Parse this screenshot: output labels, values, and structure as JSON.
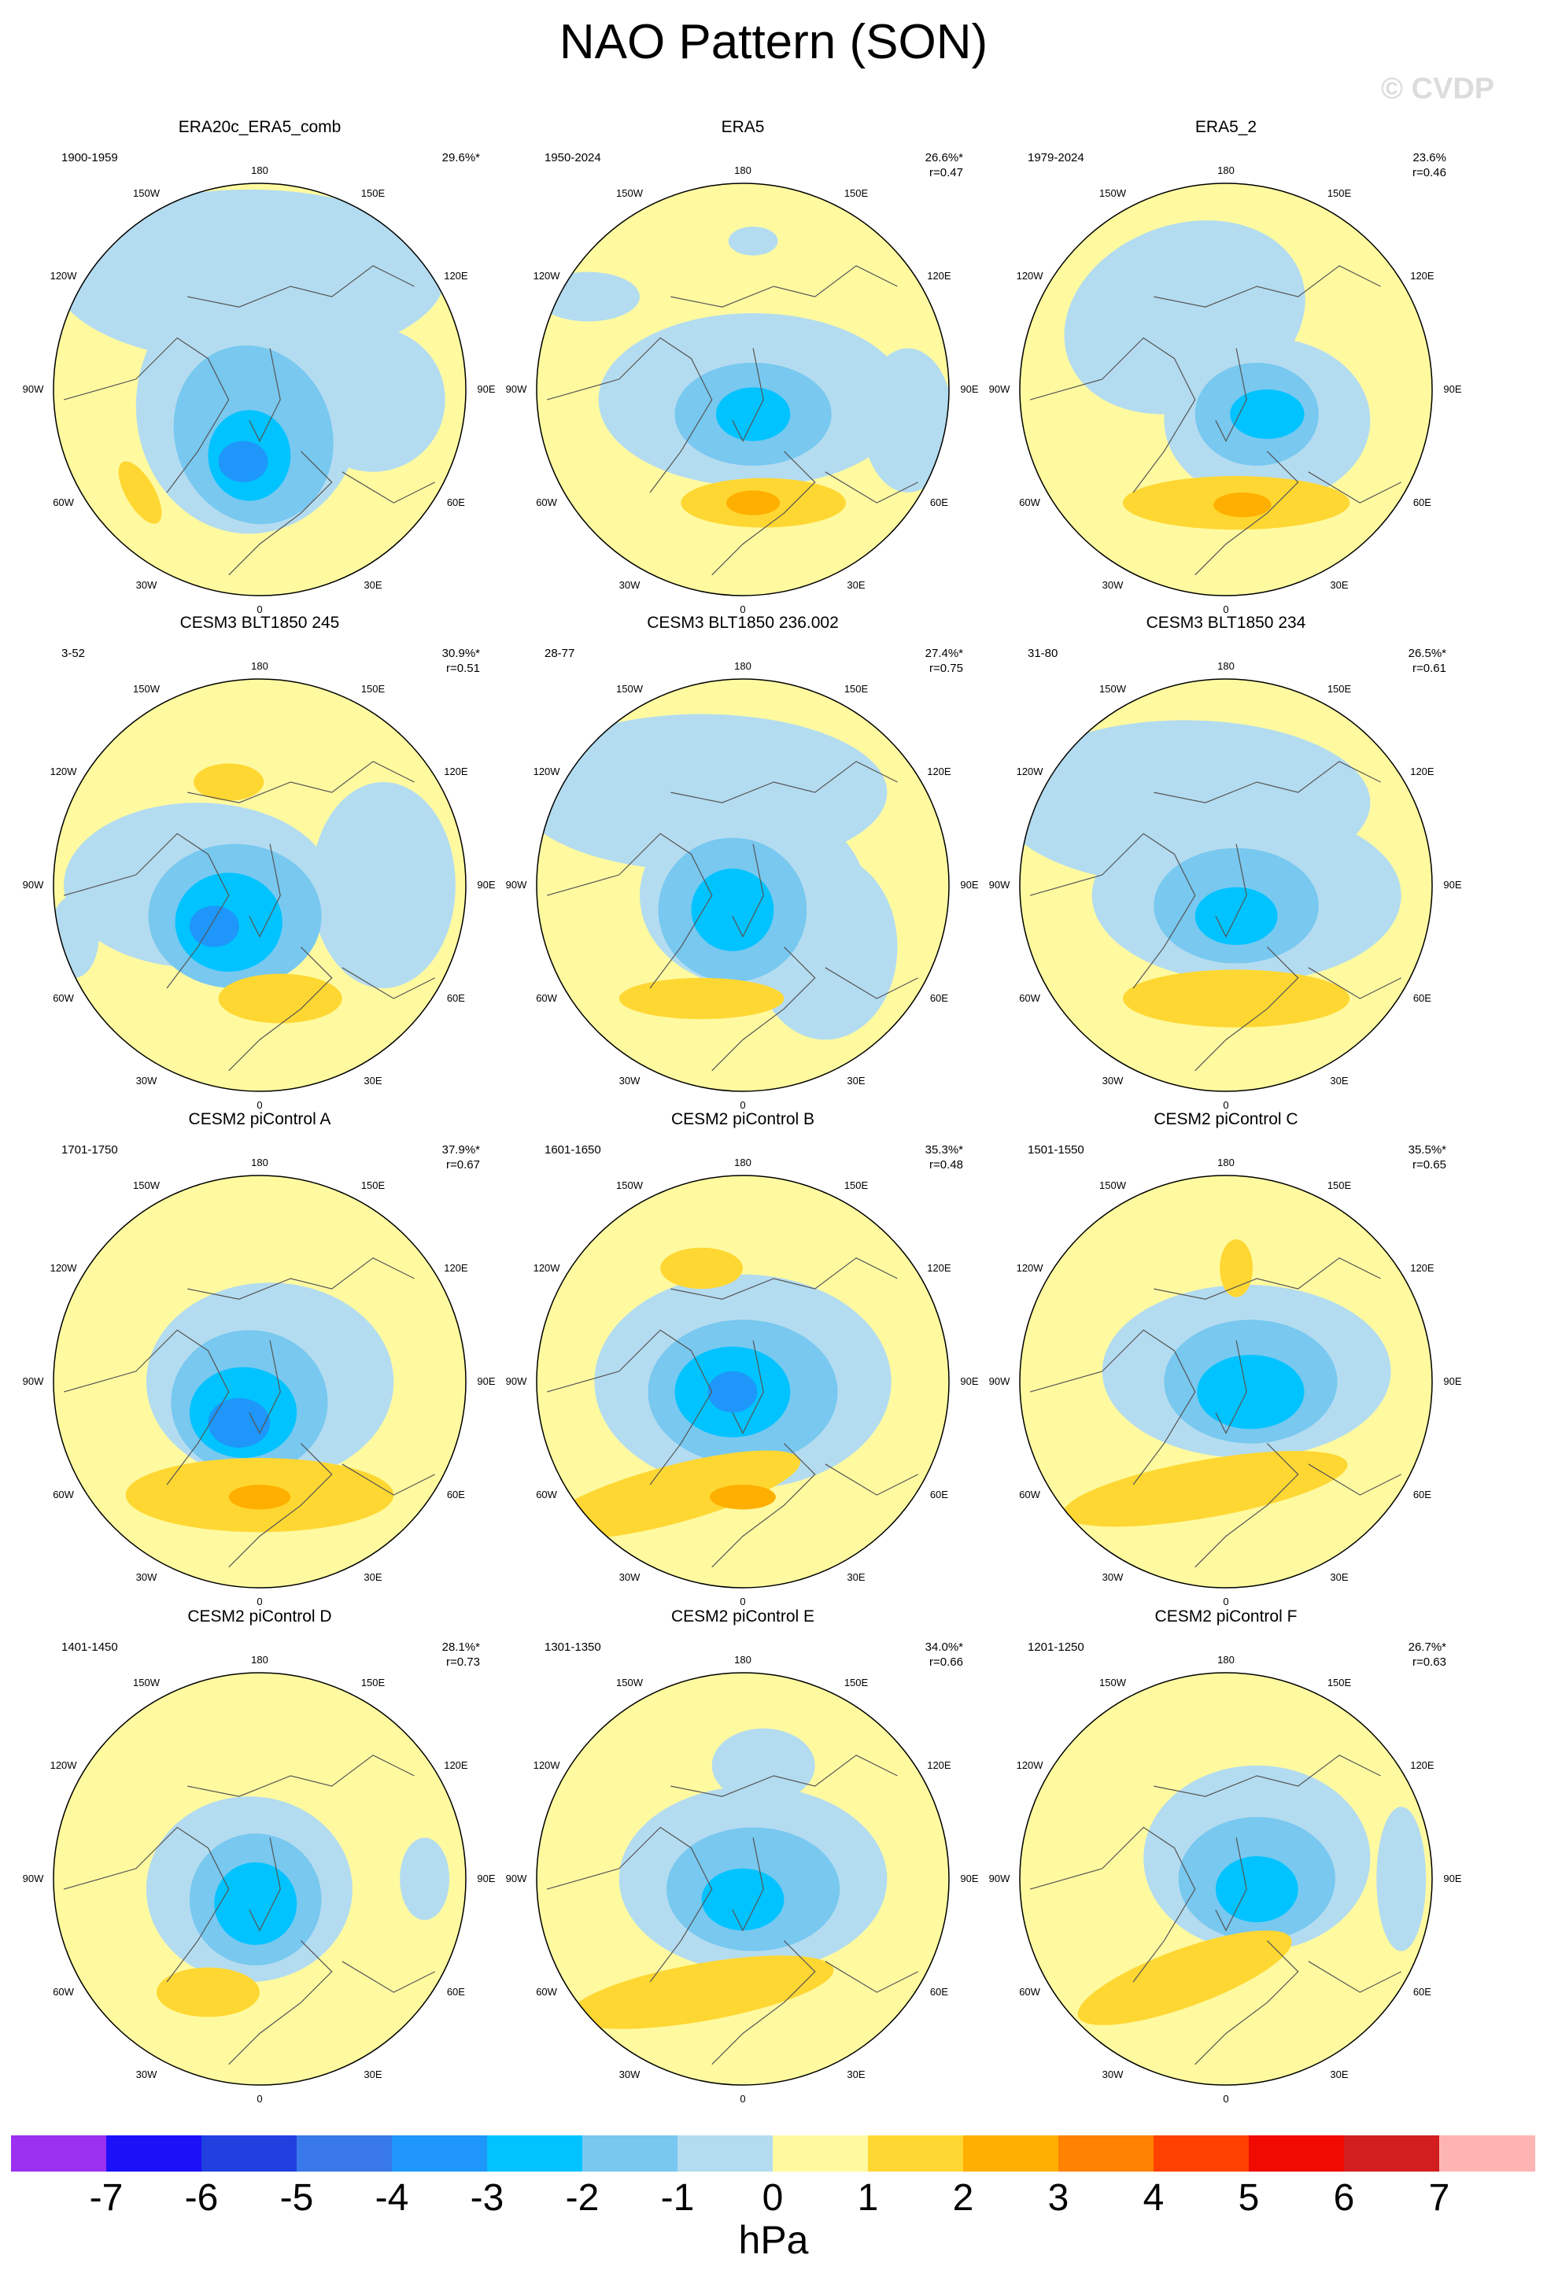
{
  "title": "NAO Pattern (SON)",
  "watermark": "© CVDP",
  "longitude_labels": {
    "top": "180",
    "bottom": "0",
    "left": [
      "150W",
      "120W",
      "90W",
      "60W",
      "30W"
    ],
    "right": [
      "150E",
      "120E",
      "90E",
      "60E",
      "30E"
    ]
  },
  "panels": [
    {
      "title": "ERA20c_ERA5_comb",
      "period": "1900-1959",
      "pct": "29.6%*",
      "r": ""
    },
    {
      "title": "ERA5",
      "period": "1950-2024",
      "pct": "26.6%*",
      "r": "r=0.47"
    },
    {
      "title": "ERA5_2",
      "period": "1979-2024",
      "pct": "23.6%",
      "r": "r=0.46"
    },
    {
      "title": "CESM3 BLT1850 245",
      "period": "3-52",
      "pct": "30.9%*",
      "r": "r=0.51"
    },
    {
      "title": "CESM3 BLT1850 236.002",
      "period": "28-77",
      "pct": "27.4%*",
      "r": "r=0.75"
    },
    {
      "title": "CESM3 BLT1850 234",
      "period": "31-80",
      "pct": "26.5%*",
      "r": "r=0.61"
    },
    {
      "title": "CESM2 piControl A",
      "period": "1701-1750",
      "pct": "37.9%*",
      "r": "r=0.67"
    },
    {
      "title": "CESM2 piControl B",
      "period": "1601-1650",
      "pct": "35.3%*",
      "r": "r=0.48"
    },
    {
      "title": "CESM2 piControl C",
      "period": "1501-1550",
      "pct": "35.5%*",
      "r": "r=0.65"
    },
    {
      "title": "CESM2 piControl D",
      "period": "1401-1450",
      "pct": "28.1%*",
      "r": "r=0.73"
    },
    {
      "title": "CESM2 piControl E",
      "period": "1301-1350",
      "pct": "34.0%*",
      "r": "r=0.66"
    },
    {
      "title": "CESM2 piControl F",
      "period": "1201-1250",
      "pct": "26.7%*",
      "r": "r=0.63"
    }
  ],
  "colorbar": {
    "unit": "hPa",
    "labels": [
      "-7",
      "-6",
      "-5",
      "-4",
      "-3",
      "-2",
      "-1",
      "0",
      "1",
      "2",
      "3",
      "4",
      "5",
      "6",
      "7"
    ],
    "colors": [
      "#9b30f0",
      "#1c10f8",
      "#2040e0",
      "#3878e8",
      "#1e96fa",
      "#00c3ff",
      "#78c8f0",
      "#b4dcf0",
      "#fffaa0",
      "#ffd732",
      "#ffaf00",
      "#ff8200",
      "#ff4100",
      "#f00a00",
      "#d21e1e",
      "#ffb4b4"
    ]
  }
}
